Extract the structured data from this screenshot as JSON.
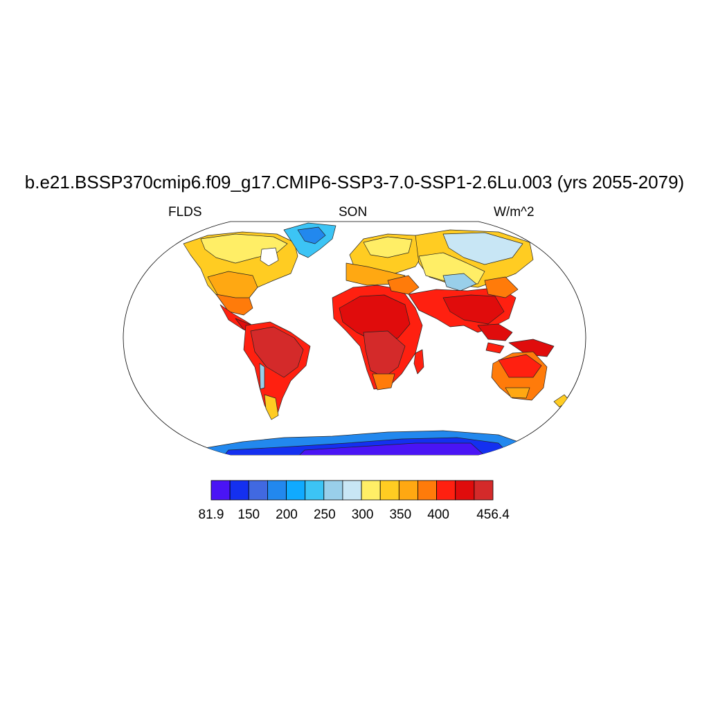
{
  "title": "b.e21.BSSP370cmip6.f09_g17.CMIP6-SSP3-7.0-SSP1-2.6Lu.003 (yrs 2055-2079)",
  "subtitle_left": "FLDS",
  "subtitle_center": "SON",
  "subtitle_right": "W/m^2",
  "colorbar": {
    "min_label": "81.9",
    "max_label": "456.4",
    "tick_labels": [
      "150",
      "200",
      "250",
      "300",
      "350",
      "400"
    ],
    "colors": [
      "#4a14f5",
      "#1430f0",
      "#4169e1",
      "#2288ee",
      "#10aaff",
      "#3cc4f5",
      "#99cfea",
      "#c8e6f5",
      "#ffee66",
      "#ffcc22",
      "#ffa812",
      "#ff7b0a",
      "#ff2010",
      "#e00c0c",
      "#d42a2a"
    ]
  },
  "map": {
    "projection": "Robinson",
    "variable": "FLDS",
    "season": "SON",
    "ocean_color": "#ffffff",
    "outline_color": "#000000"
  }
}
